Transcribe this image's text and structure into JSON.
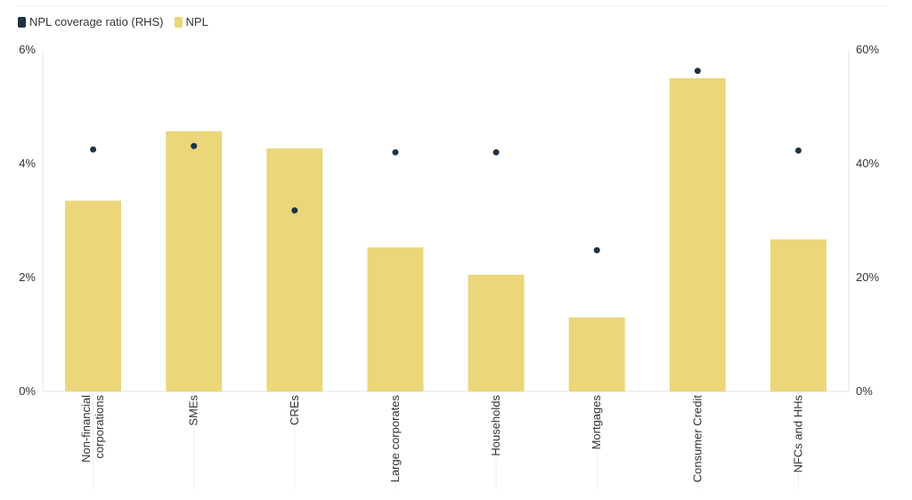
{
  "chart_data": {
    "type": "bar",
    "categories": [
      "Non-financial corporations",
      "SMEs",
      "CREs",
      "Large corporates",
      "Households",
      "Mortgages",
      "Consumer Credit",
      "NFCs and HHs"
    ],
    "category_lines": [
      [
        "Non-financial",
        "corporations"
      ],
      [
        "SMEs"
      ],
      [
        "CREs"
      ],
      [
        "Large corporates"
      ],
      [
        "Households"
      ],
      [
        "Mortgages"
      ],
      [
        "Consumer Credit"
      ],
      [
        "NFCs and HHs"
      ]
    ],
    "series": [
      {
        "name": "NPL coverage ratio (RHS)",
        "type": "scatter",
        "axis": "right",
        "color": "#1f3347",
        "values": [
          42.5,
          43.1,
          31.8,
          42.0,
          42.0,
          24.8,
          56.3,
          42.3
        ]
      },
      {
        "name": "NPL",
        "type": "bar",
        "axis": "left",
        "color": "#ebd67a",
        "values": [
          3.35,
          4.57,
          4.27,
          2.53,
          2.05,
          1.3,
          5.5,
          2.67
        ]
      }
    ],
    "yleft": {
      "min": 0,
      "max": 6,
      "ticks": [
        "0%",
        "2%",
        "4%",
        "6%"
      ],
      "tick_values": [
        0,
        2,
        4,
        6
      ]
    },
    "yright": {
      "min": 0,
      "max": 60,
      "ticks": [
        "0%",
        "20%",
        "40%",
        "60%"
      ],
      "tick_values": [
        0,
        20,
        40,
        60
      ]
    },
    "legend_position": "top-left",
    "grid": false
  }
}
